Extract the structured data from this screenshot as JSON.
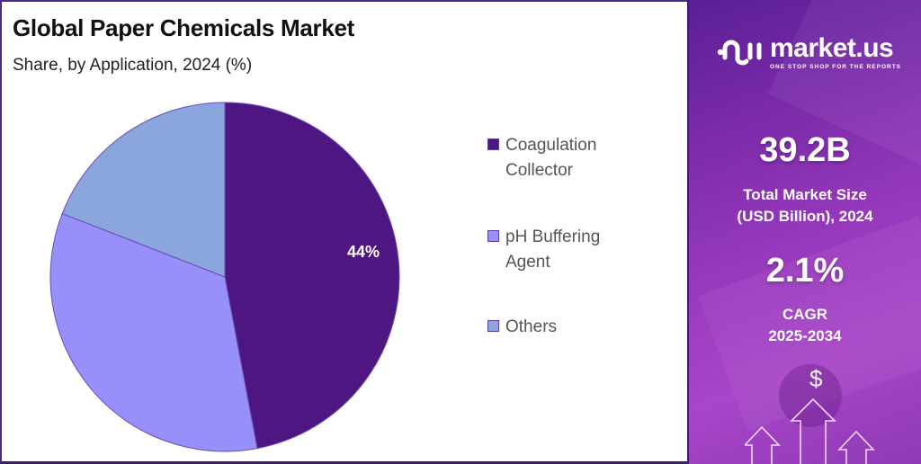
{
  "header": {
    "title": "Global Paper Chemicals Market",
    "subtitle": "Share, by Application, 2024 (%)"
  },
  "chart_data": {
    "type": "pie",
    "title": "Global Paper Chemicals Market",
    "subtitle": "Share, by Application, 2024 (%)",
    "categories": [
      "Coagulation Collector",
      "pH Buffering Agent",
      "Others"
    ],
    "values": [
      44,
      36,
      20
    ],
    "labeled_values": {
      "Coagulation Collector": "44%"
    },
    "colors": [
      "#4e1680",
      "#9790fb",
      "#8aa6dc"
    ],
    "start_angle": "12 o'clock, clockwise",
    "legend_position": "right"
  },
  "pie": {
    "slice_label": "44%"
  },
  "legend": {
    "items": [
      {
        "line1": "Coagulation",
        "line2": "Collector",
        "color": "#4e1680"
      },
      {
        "line1": "pH Buffering",
        "line2": "Agent",
        "color": "#9790fb"
      },
      {
        "line1": "Others",
        "line2": "",
        "color": "#8aa6dc"
      }
    ]
  },
  "brand": {
    "name": "market.us",
    "tagline": "ONE STOP SHOP FOR THE REPORTS"
  },
  "stats": {
    "market_size_value": "39.2B",
    "market_size_label_1": "Total Market Size",
    "market_size_label_2": "(USD Billion), 2024",
    "cagr_value": "2.1%",
    "cagr_label_1": "CAGR",
    "cagr_label_2": "2025-2034"
  },
  "decor": {
    "currency_symbol": "$"
  }
}
